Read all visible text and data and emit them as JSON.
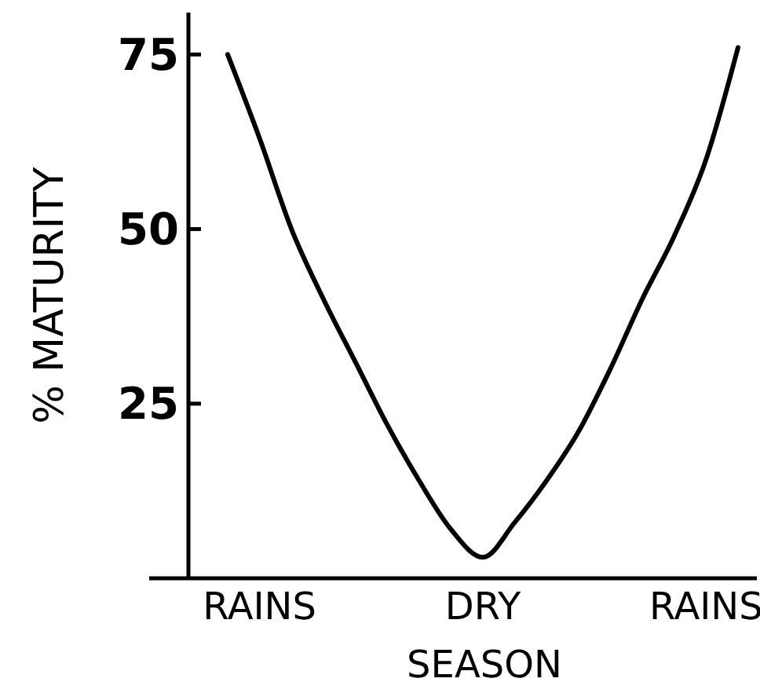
{
  "chart_data": {
    "type": "line",
    "xlabel": "SEASON",
    "ylabel": "% MATURITY",
    "categories": [
      null,
      "RAINS",
      null,
      null,
      null,
      null,
      null,
      null,
      "DRY",
      null,
      null,
      null,
      null,
      null,
      null,
      "RAINS",
      null
    ],
    "series": [
      {
        "color": "#000000",
        "values": [
          75,
          63,
          50,
          40,
          31,
          22,
          14,
          7,
          3,
          8,
          14,
          21,
          30,
          40,
          49,
          60,
          76
        ]
      }
    ],
    "ylim": [
      0,
      81
    ],
    "yticks": [
      25,
      50,
      75
    ],
    "grid": false,
    "marker": "none",
    "line_style": "solid"
  }
}
